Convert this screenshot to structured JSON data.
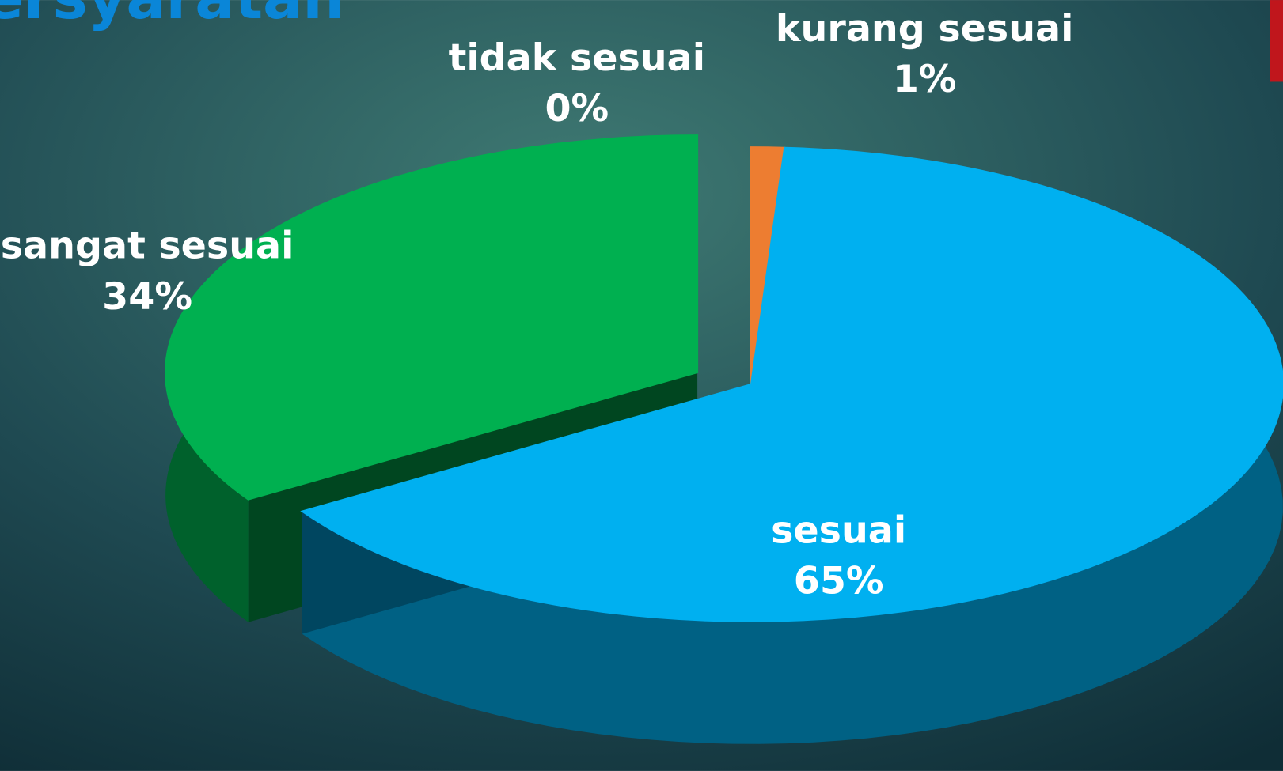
{
  "chart_data": {
    "type": "pie3d",
    "title": "ersyaratan",
    "categories": [
      "tidak sesuai",
      "kurang sesuai",
      "sesuai",
      "sangat sesuai"
    ],
    "values": [
      0,
      1,
      65,
      34
    ],
    "value_labels": [
      "0%",
      "1%",
      "65%",
      "34%"
    ],
    "colors": [
      "#a9a9a9",
      "#ed7d31",
      "#00b0f0",
      "#00b050"
    ],
    "exploded": "sangat sesuai"
  }
}
